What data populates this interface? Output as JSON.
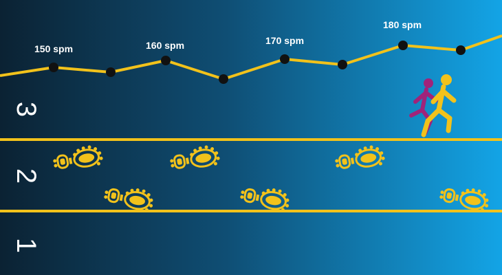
{
  "colors": {
    "background_left": "#0b2233",
    "background_right": "#13a4e6",
    "track_line": "#f2c21b",
    "marker": "#111111",
    "footprint": "#f2c21b",
    "runner_front": "#f2c21b",
    "runner_back": "#a0237a"
  },
  "cadence_labels": [
    "150 spm",
    "160 spm",
    "170 spm",
    "180 spm"
  ],
  "lanes": [
    "3",
    "2",
    "1"
  ],
  "icons": [
    "footprint-icon",
    "runner-icon"
  ]
}
